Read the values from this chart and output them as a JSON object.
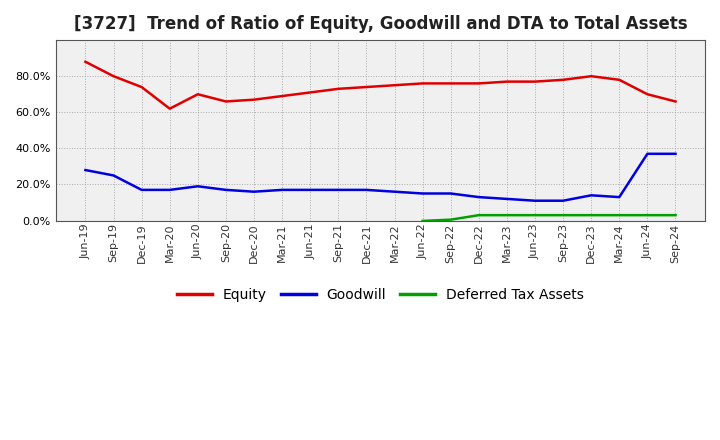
{
  "title": "[3727]  Trend of Ratio of Equity, Goodwill and DTA to Total Assets",
  "x_labels": [
    "Jun-19",
    "Sep-19",
    "Dec-19",
    "Mar-20",
    "Jun-20",
    "Sep-20",
    "Dec-20",
    "Mar-21",
    "Jun-21",
    "Sep-21",
    "Dec-21",
    "Mar-22",
    "Jun-22",
    "Sep-22",
    "Dec-22",
    "Mar-23",
    "Jun-23",
    "Sep-23",
    "Dec-23",
    "Mar-24",
    "Jun-24",
    "Sep-24"
  ],
  "equity": [
    0.88,
    0.8,
    0.74,
    0.62,
    0.7,
    0.66,
    0.67,
    0.69,
    0.71,
    0.73,
    0.74,
    0.75,
    0.76,
    0.76,
    0.76,
    0.77,
    0.77,
    0.78,
    0.8,
    0.78,
    0.7,
    0.66
  ],
  "goodwill": [
    0.28,
    0.25,
    0.17,
    0.17,
    0.19,
    0.17,
    0.16,
    0.17,
    0.17,
    0.17,
    0.17,
    0.16,
    0.15,
    0.15,
    0.13,
    0.12,
    0.11,
    0.11,
    0.14,
    0.13,
    0.37,
    0.37
  ],
  "dta": [
    null,
    null,
    null,
    null,
    null,
    null,
    null,
    null,
    null,
    null,
    null,
    null,
    -0.002,
    0.005,
    0.03,
    0.03,
    0.03,
    0.03,
    0.03,
    0.03,
    0.03,
    0.03
  ],
  "equity_color": "#e00000",
  "goodwill_color": "#0000e0",
  "dta_color": "#00a000",
  "bg_color": "#ffffff",
  "grid_color": "#aaaaaa",
  "plot_bg_color": "#f0f0f0",
  "ylim_min": 0.0,
  "ylim_max": 1.0,
  "yticks": [
    0.0,
    0.2,
    0.4,
    0.6,
    0.8
  ],
  "legend_labels": [
    "Equity",
    "Goodwill",
    "Deferred Tax Assets"
  ],
  "title_fontsize": 12,
  "axis_fontsize": 8,
  "legend_fontsize": 10,
  "linewidth": 1.8
}
